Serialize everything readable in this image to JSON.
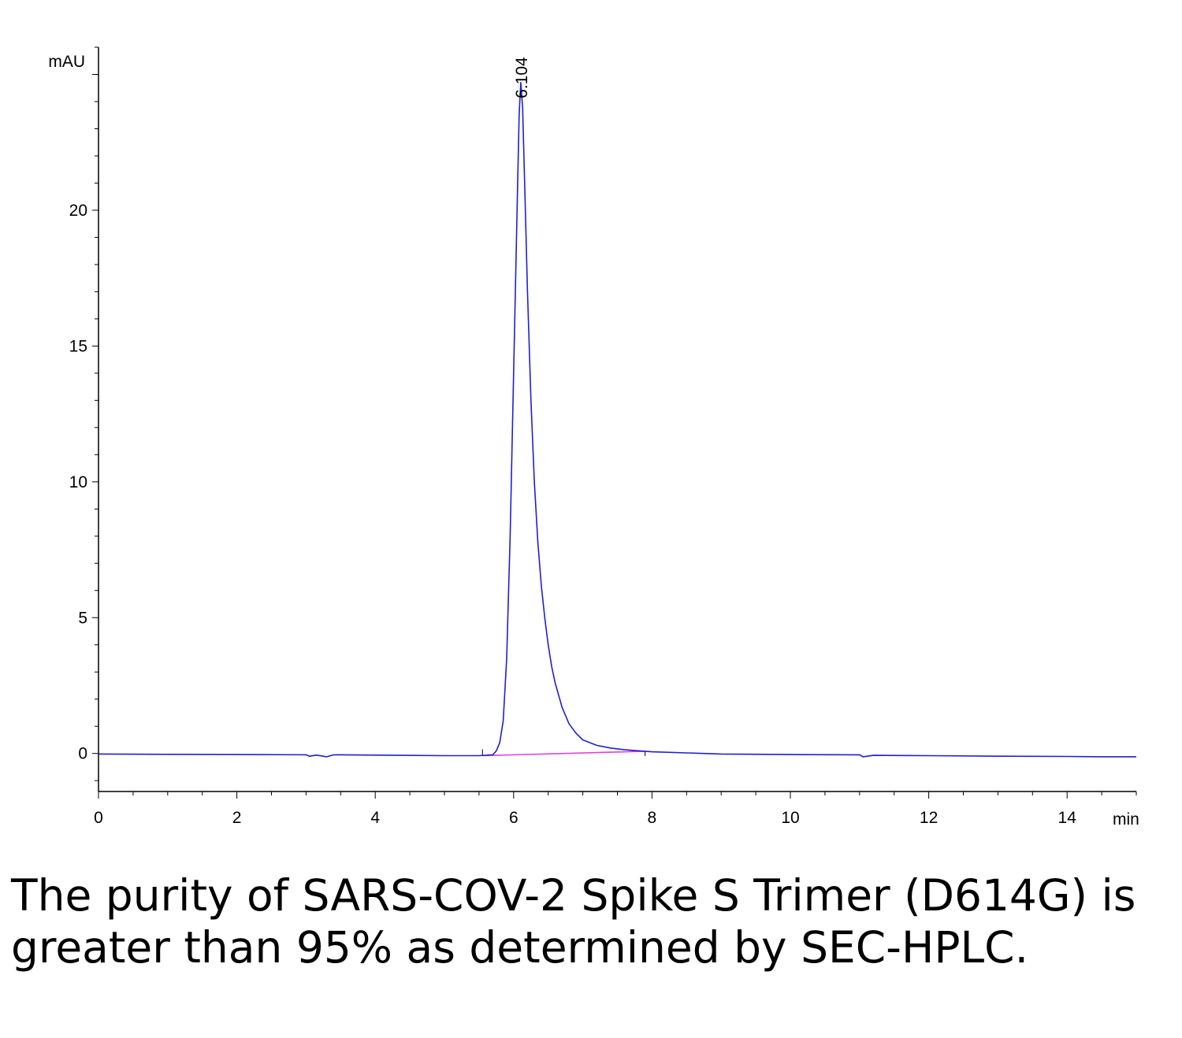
{
  "chart_data": {
    "type": "line",
    "title": "",
    "xlabel": "",
    "ylabel": "",
    "x_unit": "min",
    "y_unit": "mAU",
    "xlim": [
      0,
      15
    ],
    "ylim": [
      -1.4,
      26
    ],
    "x_ticks": [
      "0",
      "2",
      "4",
      "6",
      "8",
      "10",
      "12",
      "14"
    ],
    "y_ticks": [
      "0",
      "5",
      "10",
      "15",
      "20"
    ],
    "grid": false,
    "colors": {
      "trace": "#1f1fd6",
      "baseline": "#e040e0",
      "axis": "#000000"
    },
    "peak_annotations": [
      {
        "x": 6.104,
        "y": 24.7,
        "label": "6.104"
      }
    ],
    "series": [
      {
        "x": [
          0,
          1,
          2,
          3,
          3.05,
          3.15,
          3.3,
          3.4,
          3.5,
          4,
          5,
          5.5,
          5.7,
          5.75,
          5.8,
          5.85,
          5.9,
          5.95,
          6.0,
          6.05,
          6.08,
          6.104,
          6.13,
          6.16,
          6.2,
          6.25,
          6.3,
          6.35,
          6.4,
          6.45,
          6.5,
          6.55,
          6.6,
          6.7,
          6.8,
          6.9,
          7.0,
          7.2,
          7.4,
          7.6,
          7.8,
          8.0,
          8.5,
          9,
          10,
          11,
          11.05,
          11.2,
          12,
          13,
          14,
          14.5,
          15
        ],
        "y": [
          -0.02,
          -0.03,
          -0.04,
          -0.05,
          -0.1,
          -0.06,
          -0.12,
          -0.05,
          -0.05,
          -0.06,
          -0.08,
          -0.08,
          -0.05,
          0.1,
          0.4,
          1.2,
          3.5,
          8.0,
          14.0,
          20.0,
          23.5,
          24.7,
          23.8,
          21.0,
          17.0,
          13.0,
          10.0,
          7.8,
          6.2,
          5.0,
          4.0,
          3.2,
          2.6,
          1.7,
          1.1,
          0.75,
          0.5,
          0.3,
          0.2,
          0.14,
          0.1,
          0.06,
          0.02,
          -0.02,
          -0.04,
          -0.05,
          -0.12,
          -0.07,
          -0.08,
          -0.1,
          -0.11,
          -0.12,
          -0.12
        ]
      }
    ],
    "baseline_segment": {
      "x": [
        5.55,
        7.9
      ],
      "y": [
        -0.08,
        0.08
      ]
    }
  },
  "caption": "The purity of SARS-COV-2 Spike S Trimer (D614G) is greater than 95% as determined by SEC-HPLC."
}
